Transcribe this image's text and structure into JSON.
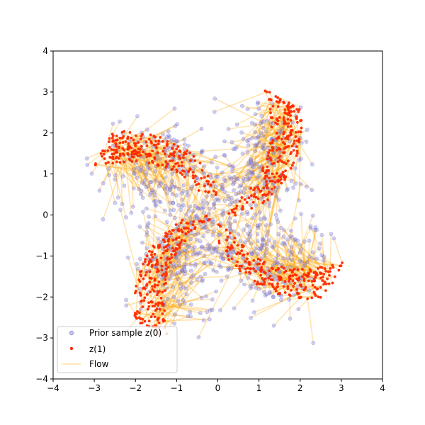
{
  "chart_data": {
    "type": "scatter",
    "title": "",
    "xlabel": "",
    "ylabel": "",
    "xlim": [
      -4,
      4
    ],
    "ylim": [
      -4,
      4
    ],
    "x_ticks": [
      -4,
      -3,
      -2,
      -1,
      0,
      1,
      2,
      3,
      4
    ],
    "y_ticks": [
      -4,
      -3,
      -2,
      -1,
      0,
      1,
      2,
      3,
      4
    ],
    "grid": false,
    "legend_position": "lower-left",
    "description_of_structure": "Four curved pinwheel arms: prior points (blue) connected by flow lines (orange) to transformed points z(1) (red) forming arm edges.",
    "pinwheel": {
      "num_arms": 4,
      "arm_directions_deg": [
        10,
        100,
        190,
        280
      ],
      "arm_length": 3.2,
      "arm_spread": 0.55,
      "swirl_strength": 0.6
    },
    "series": [
      {
        "name": "Prior sample z(0)",
        "color": "#7b7be0",
        "marker": "circle",
        "alpha": 0.35
      },
      {
        "name": "z(1)",
        "color": "#ff2a00",
        "marker": "circle",
        "alpha": 0.95
      },
      {
        "name": "Flow",
        "color": "#ffa500",
        "marker": "line",
        "alpha": 0.3
      }
    ],
    "sample_count": 900
  },
  "legend": {
    "items": [
      {
        "label": "Prior sample z(0)"
      },
      {
        "label": "z(1)"
      },
      {
        "label": "Flow"
      }
    ]
  }
}
